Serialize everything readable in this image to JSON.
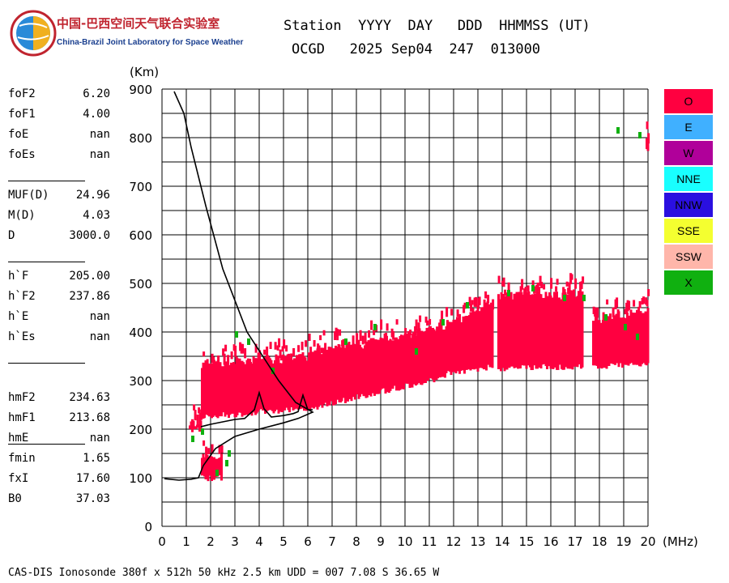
{
  "header": {
    "org_cn": "中国-巴西空间天气联合实验室",
    "org_en": "China-Brazil Joint Laboratory for Space Weather",
    "col_labels": "Station  YYYY  DAY   DDD  HHMMSS (UT)",
    "col_values": "OCGD   2025 Sep04  247  013000"
  },
  "params": [
    {
      "label": "foF2",
      "value": "6.20"
    },
    {
      "label": "foF1",
      "value": "4.00"
    },
    {
      "label": "foE",
      "value": "nan"
    },
    {
      "label": "foEs",
      "value": "nan"
    },
    {
      "label": "MUF(D)",
      "value": "24.96"
    },
    {
      "label": "M(D)",
      "value": "4.03"
    },
    {
      "label": "D",
      "value": "3000.0"
    },
    {
      "label": "h`F",
      "value": "205.00"
    },
    {
      "label": "h`F2",
      "value": "237.86"
    },
    {
      "label": "h`E",
      "value": "nan"
    },
    {
      "label": "h`Es",
      "value": "nan"
    },
    {
      "label": "hmF2",
      "value": "234.63"
    },
    {
      "label": "hmF1",
      "value": "213.68"
    },
    {
      "label": "hmE",
      "value": "nan"
    },
    {
      "label": "fmin",
      "value": "1.65"
    },
    {
      "label": "fxI",
      "value": "17.60"
    },
    {
      "label": "B0",
      "value": "37.03"
    }
  ],
  "legend": [
    {
      "label": "O",
      "color": "#ff0040"
    },
    {
      "label": "E",
      "color": "#40b0ff"
    },
    {
      "label": "W",
      "color": "#b0009a"
    },
    {
      "label": "NNE",
      "color": "#19ffff"
    },
    {
      "label": "NNW",
      "color": "#2a0fe0"
    },
    {
      "label": "SSE",
      "color": "#f4ff30"
    },
    {
      "label": "SSW",
      "color": "#ffb6aa"
    },
    {
      "label": "X",
      "color": "#10b010"
    }
  ],
  "footer": "CAS-DIS Ionosonde 380f x 512h 50 kHz 2.5 km UDD = 007 7.08 S 36.65 W",
  "chart_data": {
    "type": "scatter",
    "xlabel": "(MHz)",
    "ylabel": "(Km)",
    "xlim": [
      0,
      20
    ],
    "ylim": [
      0,
      900
    ],
    "x_ticks": [
      0,
      1,
      2,
      3,
      4,
      5,
      6,
      7,
      8,
      9,
      10,
      11,
      12,
      13,
      14,
      15,
      16,
      17,
      18,
      19,
      20
    ],
    "y_ticks": [
      0,
      100,
      200,
      300,
      400,
      500,
      600,
      700,
      800,
      900
    ],
    "grid": true,
    "series": [
      {
        "name": "O",
        "color": "#ff0040",
        "style": "echo-bands",
        "bands": [
          {
            "x": [
              1.1,
              1.6
            ],
            "y_low": [
              198,
              200
            ],
            "y_high": [
              212,
              212
            ]
          },
          {
            "x": [
              1.6,
              2.4
            ],
            "y_low": [
              100,
              100
            ],
            "y_high": [
              145,
              140
            ]
          },
          {
            "x": [
              1.6,
              6.2
            ],
            "y_low": [
              225,
              245
            ],
            "y_high": [
              330,
              350
            ]
          },
          {
            "x": [
              6.2,
              11.3
            ],
            "y_low": [
              245,
              305
            ],
            "y_high": [
              355,
              405
            ]
          },
          {
            "x": [
              11.3,
              13.6
            ],
            "y_low": [
              310,
              330
            ],
            "y_high": [
              405,
              460
            ]
          },
          {
            "x": [
              13.8,
              17.3
            ],
            "y_low": [
              325,
              330
            ],
            "y_high": [
              470,
              480
            ]
          },
          {
            "x": [
              17.7,
              20.0
            ],
            "y_low": [
              330,
              335
            ],
            "y_high": [
              425,
              440
            ]
          },
          {
            "x": [
              19.9,
              20.0
            ],
            "y_low": [
              778,
              778
            ],
            "y_high": [
              795,
              795
            ]
          }
        ]
      },
      {
        "name": "X",
        "color": "#10b010",
        "style": "scatter",
        "points": [
          [
            1.2,
            180
          ],
          [
            1.6,
            195
          ],
          [
            2.2,
            110
          ],
          [
            2.6,
            130
          ],
          [
            2.7,
            150
          ],
          [
            3.0,
            395
          ],
          [
            3.5,
            380
          ],
          [
            4.5,
            320
          ],
          [
            7.5,
            380
          ],
          [
            8.7,
            410
          ],
          [
            10.4,
            360
          ],
          [
            11.5,
            420
          ],
          [
            12.5,
            455
          ],
          [
            14.2,
            480
          ],
          [
            15.2,
            490
          ],
          [
            16.5,
            470
          ],
          [
            17.3,
            470
          ],
          [
            18.2,
            430
          ],
          [
            19.0,
            410
          ],
          [
            19.5,
            390
          ],
          [
            18.7,
            815
          ],
          [
            19.6,
            805
          ]
        ]
      },
      {
        "name": "virtual-height trace",
        "color": "#000000",
        "style": "line",
        "points": [
          [
            1.6,
            205
          ],
          [
            2.0,
            210
          ],
          [
            2.5,
            215
          ],
          [
            3.0,
            220
          ],
          [
            3.4,
            222
          ],
          [
            3.8,
            240
          ],
          [
            4.0,
            275
          ],
          [
            4.2,
            242
          ],
          [
            4.5,
            225
          ],
          [
            5.0,
            228
          ],
          [
            5.4,
            232
          ],
          [
            5.6,
            236
          ],
          [
            5.8,
            270
          ],
          [
            6.0,
            240
          ],
          [
            6.2,
            240
          ]
        ]
      },
      {
        "name": "true-height profile",
        "color": "#000000",
        "style": "line",
        "points": [
          [
            0.1,
            98
          ],
          [
            0.7,
            95
          ],
          [
            1.2,
            97
          ],
          [
            1.5,
            100
          ],
          [
            1.7,
            125
          ],
          [
            2.2,
            160
          ],
          [
            3.0,
            185
          ],
          [
            4.0,
            200
          ],
          [
            5.0,
            213
          ],
          [
            5.6,
            222
          ],
          [
            6.2,
            235
          ],
          [
            5.5,
            255
          ],
          [
            4.8,
            300
          ],
          [
            3.5,
            400
          ],
          [
            2.5,
            530
          ],
          [
            1.8,
            660
          ],
          [
            1.2,
            780
          ],
          [
            0.9,
            850
          ],
          [
            0.5,
            895
          ]
        ]
      }
    ]
  }
}
